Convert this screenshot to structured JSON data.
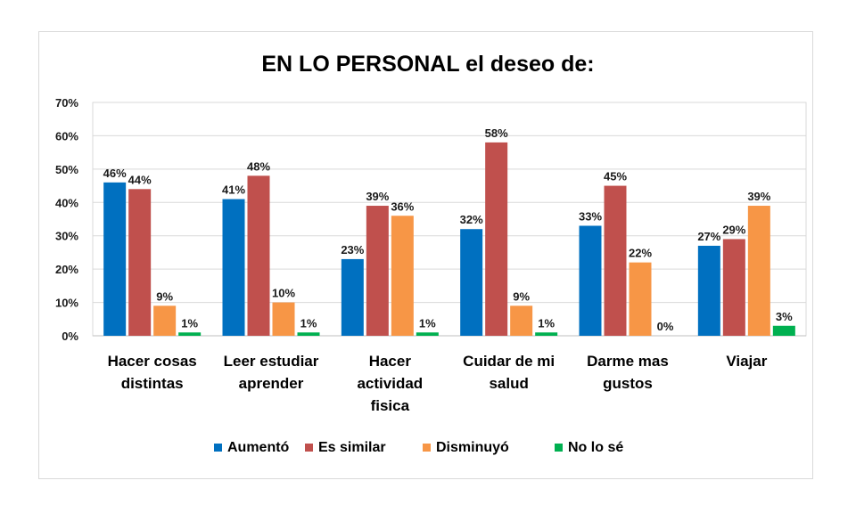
{
  "chart_data": {
    "type": "bar",
    "title": "EN LO PERSONAL el deseo de:",
    "categories": [
      [
        "Hacer cosas",
        "distintas"
      ],
      [
        "Leer estudiar",
        "aprender"
      ],
      [
        "Hacer",
        "actividad",
        "fisica"
      ],
      [
        "Cuidar de mi",
        "salud"
      ],
      [
        "Darme mas",
        "gustos"
      ],
      [
        "Viajar"
      ]
    ],
    "series": [
      {
        "name": "Aumentó",
        "color": "#0070c0",
        "values": [
          46,
          41,
          23,
          32,
          33,
          27
        ]
      },
      {
        "name": "Es similar",
        "color": "#c0504d",
        "values": [
          44,
          48,
          39,
          58,
          45,
          29
        ]
      },
      {
        "name": "Disminuyó",
        "color": "#f79646",
        "values": [
          9,
          10,
          36,
          9,
          22,
          39
        ]
      },
      {
        "name": "No lo sé",
        "color": "#00b050",
        "values": [
          1,
          1,
          1,
          1,
          0,
          3
        ]
      }
    ],
    "data_labels": [
      [
        "46%",
        "44%",
        "9%",
        "1%"
      ],
      [
        "41%",
        "48%",
        "10%",
        "1%"
      ],
      [
        "23%",
        "39%",
        "36%",
        "1%"
      ],
      [
        "32%",
        "58%",
        "9%",
        "1%"
      ],
      [
        "33%",
        "45%",
        "22%",
        "0%"
      ],
      [
        "27%",
        "29%",
        "39%",
        "3%"
      ]
    ],
    "ylim": [
      0,
      70
    ],
    "yticks": [
      "0%",
      "10%",
      "20%",
      "30%",
      "40%",
      "50%",
      "60%",
      "70%"
    ],
    "xlabel": "",
    "ylabel": "",
    "grid": true,
    "legend_position": "bottom"
  }
}
